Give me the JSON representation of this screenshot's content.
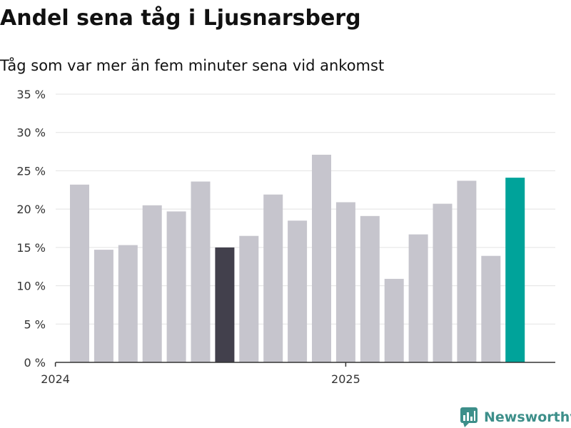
{
  "title": "Andel sena tåg i Ljusnarsberg",
  "subtitle": "Tåg som var mer än fem minuter sena vid ankomst",
  "brand": {
    "name": "Newsworthy",
    "icon": "newsworthy-logo-icon",
    "color": "#3d8f8a"
  },
  "chart_data": {
    "type": "bar",
    "title": "Andel sena tåg i Ljusnarsberg",
    "subtitle": "Tåg som var mer än fem minuter sena vid ankomst",
    "xlabel": "",
    "ylabel": "",
    "y_unit": "%",
    "ylim": [
      0,
      35
    ],
    "y_ticks": [
      0,
      5,
      10,
      15,
      20,
      25,
      30,
      35
    ],
    "y_tick_labels": [
      "0 %",
      "5 %",
      "10 %",
      "15 %",
      "20 %",
      "25 %",
      "30 %",
      "35 %"
    ],
    "x_tick_labels": [
      {
        "label": "2024",
        "category": "2024-01"
      },
      {
        "label": "2025",
        "category": "2025-01"
      }
    ],
    "grid": true,
    "categories": [
      "2024-02",
      "2024-03",
      "2024-04",
      "2024-05",
      "2024-06",
      "2024-07",
      "2024-08",
      "2024-09",
      "2024-10",
      "2024-11",
      "2024-12",
      "2025-01",
      "2025-02",
      "2025-03",
      "2025-04",
      "2025-05",
      "2025-06",
      "2025-07",
      "2025-08"
    ],
    "values": [
      23.2,
      14.7,
      15.3,
      20.5,
      19.7,
      23.6,
      15.0,
      16.5,
      21.9,
      18.5,
      27.1,
      20.9,
      19.1,
      10.9,
      16.7,
      20.7,
      23.7,
      13.9,
      24.1
    ],
    "highlight": {
      "2024-08": "#42404c",
      "2025-08": "#00a39a"
    },
    "colors": {
      "default_bar": "#c6c5cd",
      "axis": "#333333",
      "grid": "#e3e3e3"
    }
  }
}
